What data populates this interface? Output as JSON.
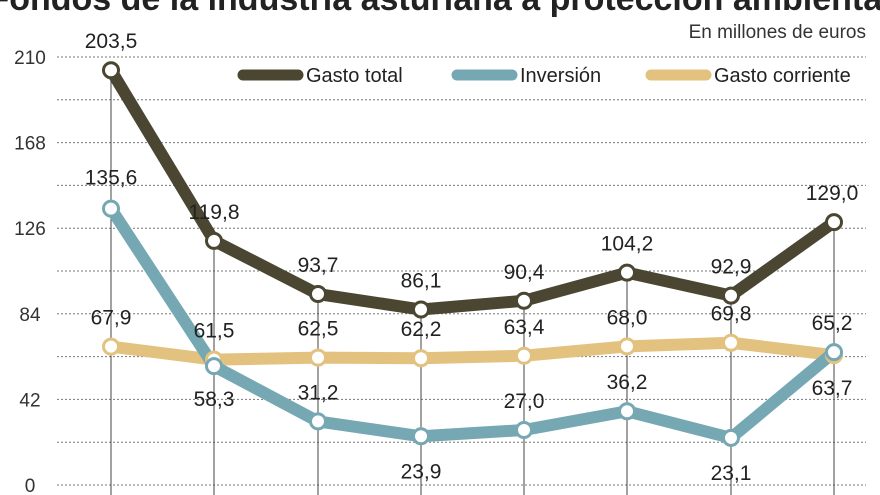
{
  "chart_data": {
    "type": "line",
    "title": "Fondos de la industria asturiana a protección ambiental",
    "subtitle": "En millones de euros",
    "ylim": [
      0,
      210
    ],
    "yticks": [
      0,
      42,
      84,
      126,
      168,
      210
    ],
    "ytick_labels": [
      "0",
      "42",
      "84",
      "126",
      "168",
      "210"
    ],
    "grid": true,
    "legend": "top",
    "series": [
      {
        "name": "Gasto total",
        "color": "#4b4631",
        "values": [
          203.5,
          119.8,
          93.7,
          86.1,
          90.4,
          104.2,
          92.9,
          129.0
        ],
        "labels": [
          "203,5",
          "119,8",
          "93,7",
          "86,1",
          "90,4",
          "104,2",
          "92,9",
          "129,0"
        ]
      },
      {
        "name": "Inversión",
        "color": "#76a8b3",
        "values": [
          135.6,
          58.3,
          31.2,
          23.9,
          27.0,
          36.2,
          23.1,
          65.2
        ],
        "labels": [
          "135,6",
          "58,3",
          "31,2",
          "23,9",
          "27,0",
          "36,2",
          "23,1",
          "65,2"
        ]
      },
      {
        "name": "Gasto corriente",
        "color": "#e2c27e",
        "values": [
          67.9,
          61.5,
          62.5,
          62.2,
          63.4,
          68.0,
          69.8,
          63.7
        ],
        "labels": [
          "67,9",
          "61,5",
          "62,5",
          "62,2",
          "63,4",
          "68,0",
          "69,8",
          "63,7"
        ]
      }
    ]
  }
}
